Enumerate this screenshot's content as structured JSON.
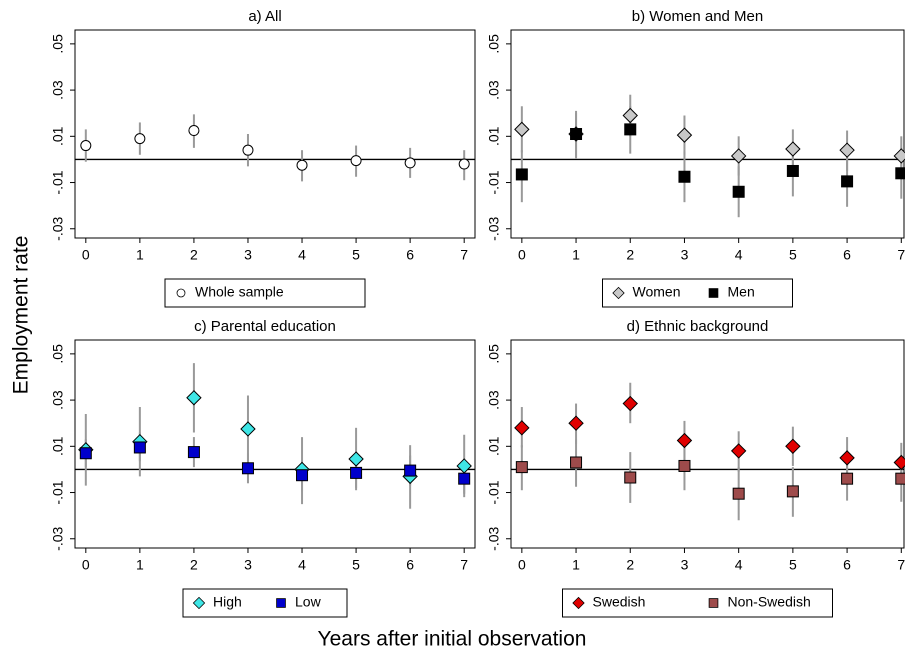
{
  "y_label": "Employment rate",
  "x_label": "Years after initial observation",
  "chart_data": [
    {
      "type": "scatter",
      "title": "a) All",
      "x": [
        0,
        1,
        2,
        3,
        4,
        5,
        6,
        7
      ],
      "xlim": [
        -0.2,
        7.2
      ],
      "xticks": [
        0,
        1,
        2,
        3,
        4,
        5,
        6,
        7
      ],
      "ylim": [
        -0.034,
        0.056
      ],
      "yticks": [
        {
          "value": -0.03,
          "label": "-.03"
        },
        {
          "value": -0.01,
          "label": "-.01"
        },
        {
          "value": 0.01,
          "label": ".01"
        },
        {
          "value": 0.03,
          "label": ".03"
        },
        {
          "value": 0.05,
          "label": ".05"
        }
      ],
      "legend": "bottom",
      "series": [
        {
          "name": "Whole sample",
          "color": "#ffffff",
          "marker": "circle",
          "values": [
            0.006,
            0.009,
            0.0125,
            0.004,
            -0.0025,
            -0.0005,
            -0.0015,
            -0.002
          ],
          "ci_low": [
            -0.001,
            0.002,
            0.005,
            -0.003,
            -0.0095,
            -0.0075,
            -0.008,
            -0.009
          ],
          "ci_high": [
            0.013,
            0.016,
            0.0195,
            0.011,
            0.004,
            0.006,
            0.005,
            0.004
          ]
        }
      ]
    },
    {
      "type": "scatter",
      "title": "b) Women and Men",
      "x": [
        0,
        1,
        2,
        3,
        4,
        5,
        6,
        7
      ],
      "xlim": [
        -0.2,
        7.05
      ],
      "xticks": [
        0,
        1,
        2,
        3,
        4,
        5,
        6,
        7
      ],
      "ylim": [
        -0.034,
        0.056
      ],
      "yticks": [
        {
          "value": -0.03,
          "label": "-.03"
        },
        {
          "value": -0.01,
          "label": "-.01"
        },
        {
          "value": 0.01,
          "label": ".01"
        },
        {
          "value": 0.03,
          "label": ".03"
        },
        {
          "value": 0.05,
          "label": ".05"
        }
      ],
      "legend": "bottom",
      "series": [
        {
          "name": "Women",
          "color": "#c8c8c8",
          "marker": "diamond",
          "values": [
            0.013,
            0.011,
            0.019,
            0.0105,
            0.0015,
            0.0045,
            0.004,
            0.0015
          ],
          "ci_low": [
            0.003,
            0.001,
            0.01,
            0.002,
            -0.007,
            -0.004,
            -0.005,
            -0.007
          ],
          "ci_high": [
            0.023,
            0.02,
            0.028,
            0.019,
            0.01,
            0.013,
            0.0125,
            0.01
          ]
        },
        {
          "name": "Men",
          "color": "#000000",
          "marker": "square",
          "values": [
            -0.0065,
            0.011,
            0.013,
            -0.0075,
            -0.014,
            -0.005,
            -0.0095,
            -0.006
          ],
          "ci_low": [
            -0.0185,
            0.0005,
            0.0025,
            -0.0185,
            -0.025,
            -0.016,
            -0.0205,
            -0.017
          ],
          "ci_high": [
            0.004,
            0.021,
            0.023,
            0.0035,
            -0.003,
            0.0055,
            0.0015,
            0.005
          ]
        }
      ]
    },
    {
      "type": "scatter",
      "title": "c) Parental education",
      "x": [
        0,
        1,
        2,
        3,
        4,
        5,
        6,
        7
      ],
      "xlim": [
        -0.2,
        7.2
      ],
      "xticks": [
        0,
        1,
        2,
        3,
        4,
        5,
        6,
        7
      ],
      "ylim": [
        -0.034,
        0.056
      ],
      "yticks": [
        {
          "value": -0.03,
          "label": "-.03"
        },
        {
          "value": -0.01,
          "label": "-.01"
        },
        {
          "value": 0.01,
          "label": ".01"
        },
        {
          "value": 0.03,
          "label": ".03"
        },
        {
          "value": 0.05,
          "label": ".05"
        }
      ],
      "legend": "bottom",
      "series": [
        {
          "name": "High",
          "color": "#3ee6e6",
          "marker": "diamond",
          "values": [
            0.0085,
            0.012,
            0.031,
            0.0175,
            0,
            0.0045,
            -0.003,
            0.0015
          ],
          "ci_low": [
            -0.007,
            -0.003,
            0.016,
            0.0025,
            -0.015,
            -0.009,
            -0.017,
            -0.012
          ],
          "ci_high": [
            0.024,
            0.027,
            0.046,
            0.032,
            0.014,
            0.018,
            0.0105,
            0.015
          ]
        },
        {
          "name": "Low",
          "color": "#0000cc",
          "marker": "square",
          "values": [
            0.007,
            0.0095,
            0.0075,
            0.0005,
            -0.0025,
            -0.0015,
            -0.0005,
            -0.004
          ],
          "ci_low": [
            0.001,
            0.0035,
            0.001,
            -0.006,
            -0.0095,
            -0.008,
            -0.007,
            -0.0105
          ],
          "ci_high": [
            0.013,
            0.016,
            0.014,
            0.007,
            0.0035,
            0.005,
            0.006,
            0.0025
          ]
        }
      ]
    },
    {
      "type": "scatter",
      "title": "d) Ethnic background",
      "x": [
        0,
        1,
        2,
        3,
        4,
        5,
        6,
        7
      ],
      "xlim": [
        -0.2,
        7.05
      ],
      "xticks": [
        0,
        1,
        2,
        3,
        4,
        5,
        6,
        7
      ],
      "ylim": [
        -0.034,
        0.056
      ],
      "yticks": [
        {
          "value": -0.03,
          "label": "-.03"
        },
        {
          "value": -0.01,
          "label": "-.01"
        },
        {
          "value": 0.01,
          "label": ".01"
        },
        {
          "value": 0.03,
          "label": ".03"
        },
        {
          "value": 0.05,
          "label": ".05"
        }
      ],
      "legend": "bottom",
      "series": [
        {
          "name": "Swedish",
          "color": "#e00000",
          "marker": "diamond",
          "values": [
            0.018,
            0.02,
            0.0285,
            0.0125,
            0.008,
            0.01,
            0.005,
            0.003
          ],
          "ci_low": [
            0.0095,
            0.011,
            0.02,
            0.004,
            -0.001,
            0.0015,
            -0.0035,
            -0.0055
          ],
          "ci_high": [
            0.027,
            0.0285,
            0.0375,
            0.021,
            0.0165,
            0.0185,
            0.014,
            0.0115
          ]
        },
        {
          "name": "Non-Swedish",
          "color": "#9e4b4b",
          "marker": "square",
          "values": [
            0.001,
            0.003,
            -0.0035,
            0.0015,
            -0.0105,
            -0.0095,
            -0.004,
            -0.004
          ],
          "ci_low": [
            -0.009,
            -0.0075,
            -0.0145,
            -0.009,
            -0.022,
            -0.0205,
            -0.0135,
            -0.014
          ],
          "ci_high": [
            0.0105,
            0.013,
            0.0075,
            0.0115,
            0.001,
            0.001,
            0.006,
            0.006
          ]
        }
      ]
    }
  ]
}
